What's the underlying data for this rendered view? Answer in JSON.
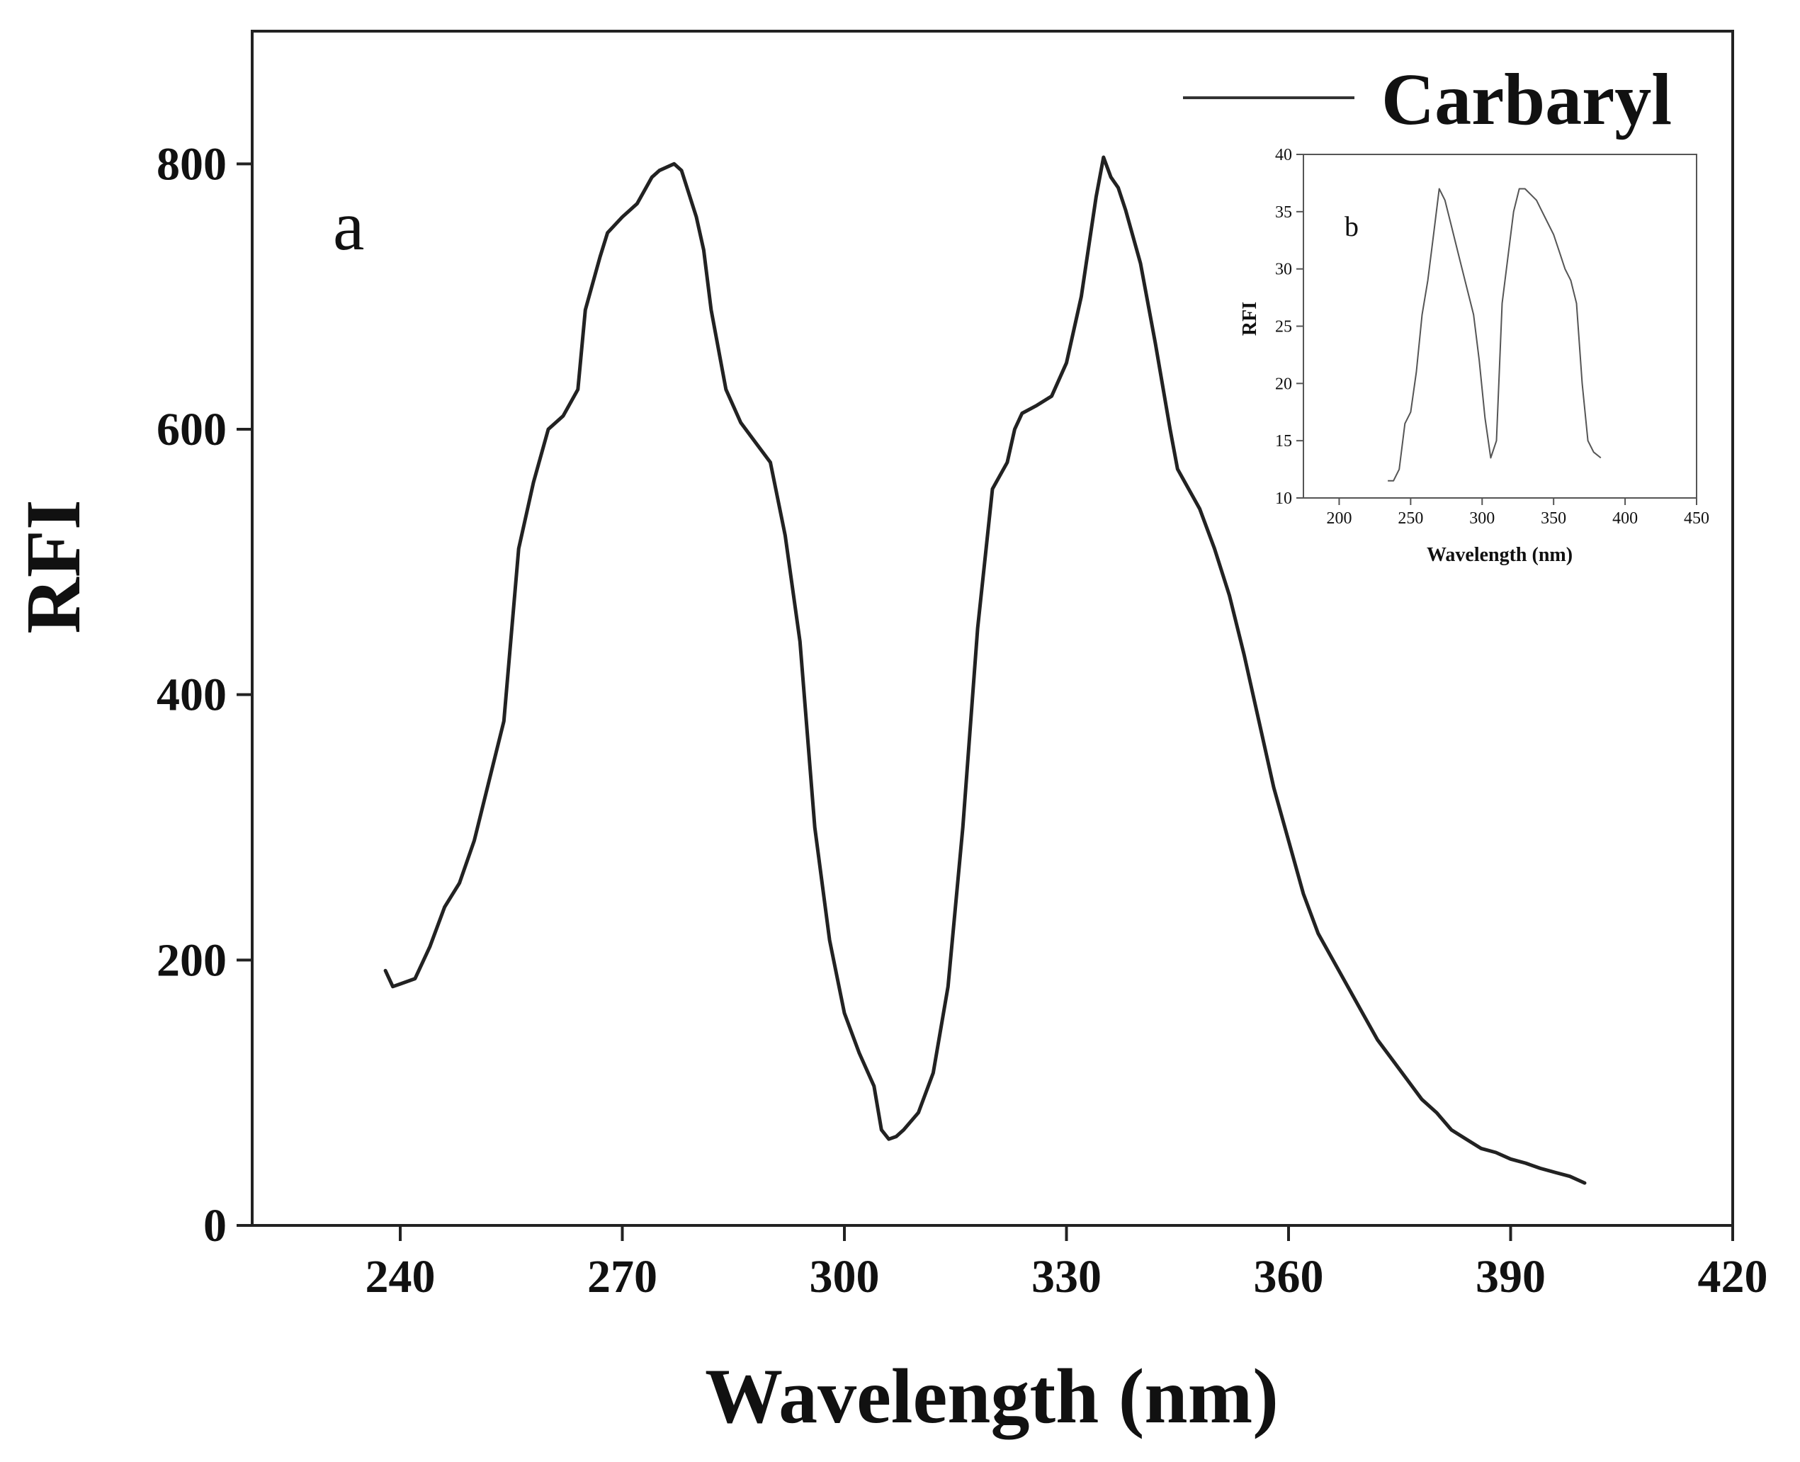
{
  "chart_data": [
    {
      "type": "line",
      "panel_label": "a",
      "xlabel": "Wavelength (nm)",
      "ylabel": "RFI",
      "xlim": [
        220,
        420
      ],
      "ylim": [
        0,
        900
      ],
      "xticks": [
        240,
        270,
        300,
        330,
        360,
        390,
        420
      ],
      "yticks": [
        0,
        200,
        400,
        600,
        800
      ],
      "grid": false,
      "legend": {
        "placement": "top-right",
        "entries": [
          "Carbaryl"
        ]
      },
      "series": [
        {
          "name": "Carbaryl",
          "color": "#222222",
          "x": [
            238,
            239,
            240,
            242,
            244,
            246,
            248,
            250,
            252,
            254,
            256,
            258,
            260,
            262,
            264,
            265,
            267,
            268,
            270,
            272,
            274,
            275,
            277,
            278,
            280,
            281,
            282,
            284,
            286,
            288,
            290,
            292,
            294,
            296,
            298,
            300,
            302,
            304,
            305,
            306,
            307,
            308,
            310,
            312,
            314,
            316,
            318,
            320,
            322,
            323,
            324,
            326,
            328,
            330,
            332,
            334,
            335,
            336,
            337,
            338,
            340,
            342,
            344,
            345,
            346,
            347,
            348,
            350,
            352,
            354,
            356,
            358,
            360,
            362,
            364,
            366,
            368,
            370,
            372,
            374,
            376,
            378,
            380,
            382,
            384,
            386,
            388,
            390,
            392,
            394,
            396,
            398,
            400
          ],
          "y": [
            192,
            180,
            182,
            186,
            210,
            240,
            258,
            290,
            335,
            380,
            510,
            560,
            600,
            610,
            630,
            690,
            730,
            748,
            760,
            770,
            790,
            795,
            800,
            795,
            760,
            735,
            690,
            630,
            605,
            590,
            575,
            520,
            440,
            300,
            215,
            160,
            130,
            105,
            72,
            65,
            67,
            72,
            85,
            115,
            180,
            300,
            450,
            555,
            575,
            600,
            612,
            618,
            625,
            650,
            700,
            775,
            805,
            790,
            782,
            765,
            725,
            665,
            600,
            570,
            560,
            550,
            540,
            510,
            475,
            430,
            380,
            330,
            290,
            250,
            220,
            200,
            180,
            160,
            140,
            125,
            110,
            95,
            85,
            72,
            65,
            58,
            55,
            50,
            47,
            43,
            40,
            37,
            32
          ]
        }
      ]
    },
    {
      "type": "line",
      "panel_label": "b",
      "xlabel": "Wavelength (nm)",
      "ylabel": "RFI",
      "xlim": [
        175,
        450
      ],
      "ylim": [
        10,
        40
      ],
      "xticks": [
        200,
        250,
        300,
        350,
        400,
        450
      ],
      "yticks": [
        10,
        15,
        20,
        25,
        30,
        35,
        40
      ],
      "grid": false,
      "series": [
        {
          "color": "#555555",
          "x": [
            234,
            238,
            242,
            246,
            250,
            254,
            258,
            262,
            266,
            270,
            274,
            278,
            282,
            286,
            290,
            294,
            298,
            302,
            306,
            310,
            314,
            318,
            322,
            326,
            330,
            334,
            338,
            342,
            346,
            350,
            354,
            358,
            362,
            366,
            370,
            374,
            378,
            383
          ],
          "y": [
            11.5,
            11.5,
            12.5,
            16.5,
            17.5,
            21,
            26,
            29,
            33,
            37,
            36,
            34,
            32,
            30,
            28,
            26,
            22,
            17,
            13.5,
            15,
            27,
            31,
            35,
            37,
            37,
            36.5,
            36,
            35,
            34,
            33,
            31.5,
            30,
            29,
            27,
            20,
            15,
            14,
            13.5
          ]
        }
      ]
    }
  ]
}
